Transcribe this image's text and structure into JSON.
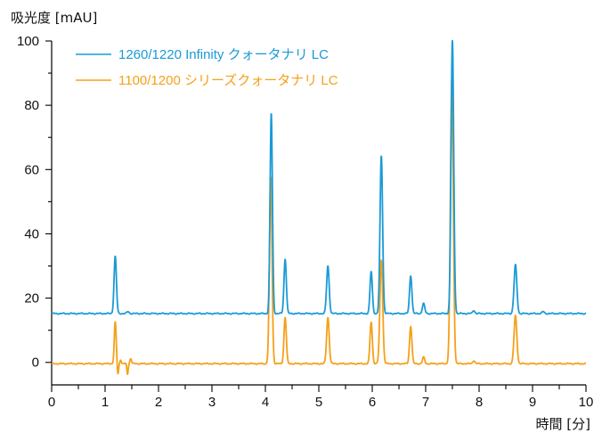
{
  "chart_data": {
    "type": "line",
    "title": "",
    "ylabel": "吸光度 [mAU]",
    "xlabel": "時間 [分]",
    "xlim": [
      0,
      10
    ],
    "ylim": [
      -7,
      100
    ],
    "x_ticks": [
      0,
      1,
      2,
      3,
      4,
      5,
      6,
      7,
      8,
      9,
      10
    ],
    "y_ticks": [
      0,
      20,
      40,
      60,
      80,
      100
    ],
    "grid": false,
    "legend_position": "top-left",
    "series": [
      {
        "name": "1260/1220 Infinity クォータナリ LC",
        "color": "#1a9ad6",
        "baseline": 15.2,
        "peaks": [
          {
            "rt": 1.19,
            "height": 33,
            "width": 0.022
          },
          {
            "rt": 1.43,
            "height": 15.8,
            "width": 0.02
          },
          {
            "rt": 4.11,
            "height": 77.5,
            "width": 0.022
          },
          {
            "rt": 4.37,
            "height": 32.2,
            "width": 0.022
          },
          {
            "rt": 5.17,
            "height": 30,
            "width": 0.024
          },
          {
            "rt": 5.98,
            "height": 28.2,
            "width": 0.022
          },
          {
            "rt": 6.17,
            "height": 64.3,
            "width": 0.024
          },
          {
            "rt": 6.72,
            "height": 27,
            "width": 0.022
          },
          {
            "rt": 6.96,
            "height": 18.3,
            "width": 0.022
          },
          {
            "rt": 7.5,
            "height": 100,
            "width": 0.025
          },
          {
            "rt": 7.9,
            "height": 16.2,
            "width": 0.02
          },
          {
            "rt": 8.68,
            "height": 30.3,
            "width": 0.026
          },
          {
            "rt": 9.2,
            "height": 15.8,
            "width": 0.02
          }
        ]
      },
      {
        "name": "1100/1200 シリーズクォータナリ LC",
        "color": "#f5a01a",
        "baseline": -0.4,
        "peaks": [
          {
            "rt": 1.19,
            "height": 12.5,
            "width": 0.018
          },
          {
            "rt": 1.24,
            "height": -3.8,
            "width": 0.012
          },
          {
            "rt": 1.29,
            "height": 0.9,
            "width": 0.012
          },
          {
            "rt": 1.42,
            "height": -3.6,
            "width": 0.012
          },
          {
            "rt": 1.48,
            "height": 1.2,
            "width": 0.015
          },
          {
            "rt": 4.1,
            "height": 57.5,
            "width": 0.024
          },
          {
            "rt": 4.37,
            "height": 14,
            "width": 0.022
          },
          {
            "rt": 5.17,
            "height": 14,
            "width": 0.024
          },
          {
            "rt": 5.98,
            "height": 12.5,
            "width": 0.022
          },
          {
            "rt": 6.17,
            "height": 32,
            "width": 0.026
          },
          {
            "rt": 6.72,
            "height": 11.3,
            "width": 0.022
          },
          {
            "rt": 6.96,
            "height": 1.6,
            "width": 0.02
          },
          {
            "rt": 7.49,
            "height": 88,
            "width": 0.027
          },
          {
            "rt": 7.9,
            "height": 0.6,
            "width": 0.02
          },
          {
            "rt": 8.68,
            "height": 14.5,
            "width": 0.026
          }
        ]
      }
    ]
  }
}
